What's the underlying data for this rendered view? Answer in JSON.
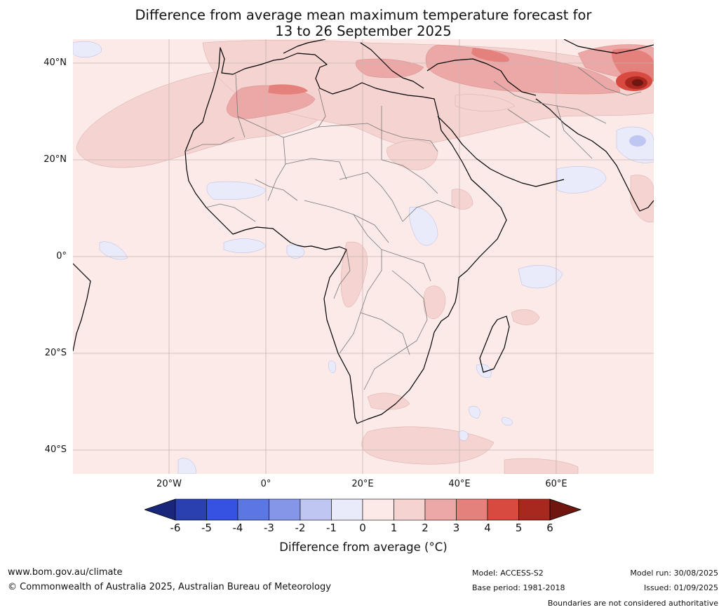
{
  "title": {
    "line1": "Difference from average mean maximum temperature forecast for",
    "line2": "13 to 26 September 2025"
  },
  "axes": {
    "lat_labels": [
      "40°N",
      "20°N",
      "0°",
      "20°S",
      "40°S"
    ],
    "lon_labels": [
      "20°W",
      "0°",
      "20°E",
      "40°E",
      "60°E"
    ]
  },
  "colorbar": {
    "ticks": [
      "-6",
      "-5",
      "-4",
      "-3",
      "-2",
      "-1",
      "0",
      "1",
      "2",
      "3",
      "4",
      "5",
      "6"
    ],
    "colors": [
      "#18277a",
      "#2a3fb0",
      "#3552e0",
      "#5c77e2",
      "#8596e8",
      "#c0c6f2",
      "#e9ebfb",
      "#fbeae8",
      "#f4d3d0",
      "#eca8a6",
      "#e4817d",
      "#d84a40",
      "#a8281f",
      "#6e160f"
    ],
    "label": "Difference from average (°C)"
  },
  "footer": {
    "site": "www.bom.gov.au/climate",
    "copyright": "© Commonwealth of Australia 2025, Australian Bureau of Meteorology",
    "model": "Model: ACCESS-S2",
    "base_period": "Base period: 1981-2018",
    "model_run": "Model run: 30/08/2025",
    "issued": "Issued: 01/09/2025",
    "disclaimer": "Boundaries are not considered authoritative"
  }
}
